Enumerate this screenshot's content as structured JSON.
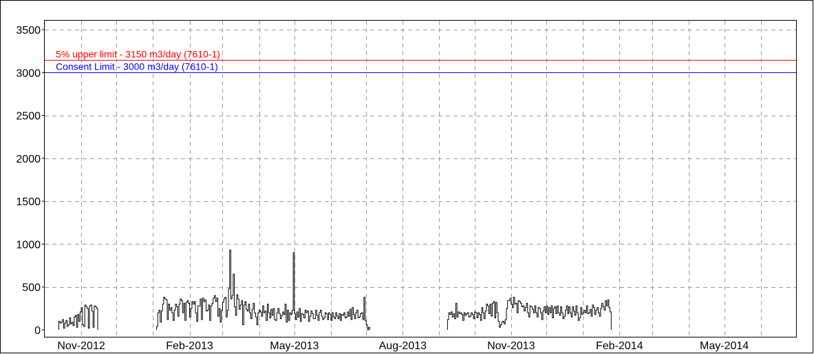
{
  "chart_data": {
    "type": "line",
    "title": "",
    "xlabel": "",
    "ylabel": "",
    "ylim": [
      0,
      3600
    ],
    "yticks": [
      0,
      500,
      1000,
      1500,
      2000,
      2500,
      3000,
      3500
    ],
    "ytick_labels": [
      "0",
      "500",
      "1000",
      "1500",
      "2000",
      "2500",
      "3000",
      "3500"
    ],
    "xlim": [
      "2012-10-01",
      "2014-07-01"
    ],
    "xticks": [
      "2012-11-01",
      "2013-02-01",
      "2013-05-01",
      "2013-08-01",
      "2013-11-01",
      "2014-02-01",
      "2014-05-01"
    ],
    "xtick_labels": [
      "Nov-2012",
      "Feb-2013",
      "May-2013",
      "Aug-2013",
      "Nov-2013",
      "Feb-2014",
      "May-2014"
    ],
    "grid": true,
    "reference_lines": [
      {
        "label": "5% upper limit - 3150 m3/day (7610-1)",
        "value": 3150,
        "color": "#ff0000"
      },
      {
        "label": "Consent Limit - 3000 m3/day (7610-1)",
        "value": 3000,
        "color": "#0000ff"
      }
    ],
    "series": [
      {
        "color": "#000000",
        "segments": [
          {
            "start": "2012-10-13",
            "values": [
              100,
              80,
              90,
              120,
              20,
              80,
              110,
              40,
              60,
              140,
              70,
              90,
              50,
              150,
              170,
              30,
              180,
              100,
              210,
              260,
              60,
              40,
              290,
              270,
              250,
              20,
              280,
              290,
              220,
              30,
              280,
              270,
              250
            ]
          },
          {
            "start": "2013-01-04",
            "values": [
              40,
              200,
              230,
              90,
              220,
              300,
              380,
              360,
              350,
              120,
              300,
              230,
              260,
              200,
              110,
              230,
              300,
              270,
              160,
              300,
              360,
              340,
              200,
              310,
              110,
              320,
              340,
              310,
              150,
              250,
              330,
              300,
              330,
              200,
              100,
              280,
              280,
              360,
              120,
              370,
              330,
              350,
              220,
              230,
              290,
              110,
              280,
              310,
              370,
              400,
              330,
              370,
              160,
              250,
              90,
              230,
              320,
              360,
              380,
              150,
              230,
              480,
              930,
              360,
              400,
              650,
              270,
              170,
              410,
              360,
              240,
              290,
              340,
              60,
              290,
              330,
              240,
              220,
              300,
              200,
              130,
              240,
              310,
              200,
              150,
              60,
              200,
              230,
              210,
              160,
              280,
              200,
              220,
              110,
              300,
              200,
              140,
              240,
              170,
              250,
              120,
              110,
              200,
              250,
              190,
              130,
              170,
              210,
              180,
              300,
              90,
              230,
              110,
              200,
              180,
              230,
              900,
              190,
              120,
              210,
              150,
              250,
              100,
              190,
              180,
              140,
              230,
              200,
              220,
              100,
              160,
              220,
              190,
              130,
              130,
              230,
              170,
              110,
              200,
              230,
              160,
              120,
              140,
              200,
              190,
              120,
              200,
              180,
              110,
              200,
              150,
              130,
              200,
              160,
              130,
              190,
              110,
              180,
              170,
              200,
              140,
              150,
              210,
              160,
              240,
              120,
              260,
              180,
              130,
              200,
              230,
              140,
              150,
              190,
              200,
              120,
              380,
              110,
              60,
              0,
              30
            ]
          },
          {
            "start": "2013-09-08",
            "values": [
              120,
              200,
              180,
              210,
              150,
              190,
              130,
              310,
              150,
              210,
              190,
              200,
              180,
              110,
              200,
              170,
              190,
              200,
              150,
              160,
              200,
              180,
              130,
              210,
              200,
              140,
              200,
              180,
              110,
              260,
              200,
              130,
              220,
              300,
              280,
              190,
              300,
              160,
              310,
              330,
              140,
              320,
              200,
              100,
              30,
              60,
              90,
              100,
              70,
              120,
              250,
              340,
              340,
              370,
              300,
              260,
              380,
              300,
              310,
              200,
              340,
              330,
              310,
              270,
              280,
              220,
              260,
              310,
              200,
              150,
              280,
              270,
              240,
              200,
              280,
              200,
              150,
              260,
              250,
              200,
              120,
              220,
              270,
              200,
              280,
              180,
              260,
              200,
              280,
              140,
              250,
              270,
              190,
              280,
              200,
              170,
              270,
              200,
              130,
              160,
              230,
              280,
              190,
              270,
              200,
              150,
              270,
              220,
              170,
              280,
              200,
              110,
              140,
              260,
              180,
              200,
              230,
              200,
              280,
              190,
              200,
              240,
              160,
              290,
              260,
              180,
              230,
              260,
              200,
              160,
              250,
              310,
              270,
              230,
              340,
              280,
              350,
              260,
              210
            ]
          }
        ]
      }
    ]
  }
}
